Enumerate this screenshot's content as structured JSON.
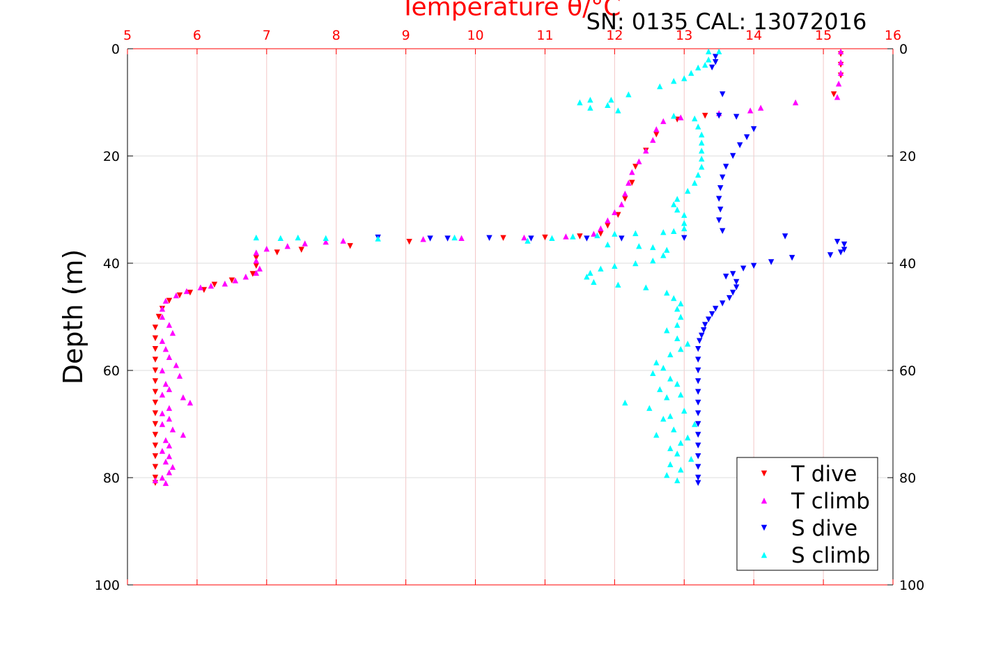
{
  "chart_data": {
    "type": "scatter",
    "title": "Temperature θ/°C",
    "subtitle": "SN: 0135  CAL: 13072016",
    "xlabel": "Temperature θ/°C",
    "ylabel": "Depth (m)",
    "xlim": [
      5,
      16
    ],
    "ylim": [
      0,
      100
    ],
    "y_reversed": true,
    "x_axis_position": "top",
    "x_ticks": [
      5,
      6,
      7,
      8,
      9,
      10,
      11,
      12,
      13,
      14,
      15,
      16
    ],
    "y_ticks": [
      0,
      20,
      40,
      60,
      80,
      100
    ],
    "grid": true,
    "legend_position": "bottom-right",
    "colors": {
      "axis_top": "#ff0000",
      "grid_x": "#f3c6c6",
      "grid_y": "#dcdcdc"
    },
    "series": [
      {
        "name": "T dive",
        "marker": "triangle-down",
        "color": "#ff0000",
        "points": [
          [
            15.25,
            1
          ],
          [
            15.25,
            3
          ],
          [
            15.25,
            5
          ],
          [
            15.15,
            8.5
          ],
          [
            13.3,
            12.5
          ],
          [
            12.9,
            13.2
          ],
          [
            12.6,
            16
          ],
          [
            12.45,
            19
          ],
          [
            12.3,
            22
          ],
          [
            12.25,
            25
          ],
          [
            12.15,
            28
          ],
          [
            12.05,
            31
          ],
          [
            11.9,
            33
          ],
          [
            11.8,
            34.5
          ],
          [
            11.5,
            35
          ],
          [
            11.0,
            35.2
          ],
          [
            10.4,
            35.3
          ],
          [
            9.05,
            36
          ],
          [
            8.2,
            36.8
          ],
          [
            7.5,
            37.5
          ],
          [
            7.15,
            38
          ],
          [
            6.85,
            39
          ],
          [
            6.85,
            40.5
          ],
          [
            6.8,
            42
          ],
          [
            6.5,
            43.2
          ],
          [
            6.25,
            44
          ],
          [
            6.1,
            45
          ],
          [
            5.9,
            45.5
          ],
          [
            5.75,
            46
          ],
          [
            5.6,
            47
          ],
          [
            5.5,
            48.5
          ],
          [
            5.45,
            50
          ],
          [
            5.4,
            52
          ],
          [
            5.4,
            54
          ],
          [
            5.4,
            56
          ],
          [
            5.4,
            58
          ],
          [
            5.4,
            60
          ],
          [
            5.4,
            62
          ],
          [
            5.4,
            64
          ],
          [
            5.4,
            66
          ],
          [
            5.4,
            68
          ],
          [
            5.4,
            70
          ],
          [
            5.4,
            72
          ],
          [
            5.4,
            74
          ],
          [
            5.4,
            76
          ],
          [
            5.4,
            78
          ],
          [
            5.4,
            80
          ],
          [
            5.4,
            81
          ]
        ]
      },
      {
        "name": "T climb",
        "marker": "triangle-up",
        "color": "#ff00ff",
        "points": [
          [
            15.25,
            0.5
          ],
          [
            15.25,
            2.5
          ],
          [
            15.25,
            4.5
          ],
          [
            15.22,
            6.5
          ],
          [
            15.2,
            9
          ],
          [
            14.6,
            10
          ],
          [
            14.1,
            11
          ],
          [
            13.95,
            11.5
          ],
          [
            13.5,
            12
          ],
          [
            12.95,
            12.8
          ],
          [
            12.7,
            13.5
          ],
          [
            12.6,
            15
          ],
          [
            12.55,
            17
          ],
          [
            12.45,
            19
          ],
          [
            12.35,
            21
          ],
          [
            12.25,
            23
          ],
          [
            12.2,
            25
          ],
          [
            12.15,
            27
          ],
          [
            12.1,
            29
          ],
          [
            12.0,
            30.5
          ],
          [
            11.9,
            32
          ],
          [
            11.8,
            33.5
          ],
          [
            11.7,
            34.5
          ],
          [
            11.3,
            35
          ],
          [
            10.7,
            35.2
          ],
          [
            9.8,
            35.3
          ],
          [
            9.25,
            35.5
          ],
          [
            8.1,
            35.8
          ],
          [
            7.85,
            36
          ],
          [
            7.55,
            36.3
          ],
          [
            7.3,
            36.8
          ],
          [
            7.0,
            37.3
          ],
          [
            6.85,
            38
          ],
          [
            6.85,
            39.5
          ],
          [
            6.9,
            41
          ],
          [
            6.85,
            41.8
          ],
          [
            6.7,
            42.5
          ],
          [
            6.55,
            43.2
          ],
          [
            6.4,
            43.8
          ],
          [
            6.2,
            44.2
          ],
          [
            6.05,
            44.5
          ],
          [
            5.85,
            45.2
          ],
          [
            5.7,
            46
          ],
          [
            5.55,
            47
          ],
          [
            5.5,
            48.5
          ],
          [
            5.5,
            50
          ],
          [
            5.6,
            51.5
          ],
          [
            5.65,
            53
          ],
          [
            5.5,
            54.5
          ],
          [
            5.55,
            56
          ],
          [
            5.6,
            57.5
          ],
          [
            5.7,
            59
          ],
          [
            5.5,
            60
          ],
          [
            5.75,
            61
          ],
          [
            5.55,
            62.5
          ],
          [
            5.6,
            63.5
          ],
          [
            5.5,
            64.5
          ],
          [
            5.8,
            65
          ],
          [
            5.9,
            66
          ],
          [
            5.6,
            67
          ],
          [
            5.5,
            68
          ],
          [
            5.6,
            69
          ],
          [
            5.5,
            70
          ],
          [
            5.65,
            71
          ],
          [
            5.8,
            72
          ],
          [
            5.55,
            73
          ],
          [
            5.6,
            74
          ],
          [
            5.5,
            75
          ],
          [
            5.6,
            76
          ],
          [
            5.55,
            77
          ],
          [
            5.65,
            78
          ],
          [
            5.6,
            79
          ],
          [
            5.5,
            80
          ],
          [
            5.4,
            80.5
          ],
          [
            5.55,
            81
          ]
        ]
      },
      {
        "name": "S dive",
        "marker": "triangle-down",
        "color": "#0000ff",
        "points": [
          [
            13.45,
            1.5
          ],
          [
            13.45,
            2.5
          ],
          [
            13.4,
            3.5
          ],
          [
            13.55,
            8.5
          ],
          [
            13.5,
            12.5
          ],
          [
            13.75,
            12.7
          ],
          [
            14.0,
            15
          ],
          [
            13.9,
            16.5
          ],
          [
            13.8,
            18
          ],
          [
            13.7,
            20
          ],
          [
            13.6,
            22
          ],
          [
            13.55,
            24
          ],
          [
            13.52,
            26
          ],
          [
            13.5,
            28
          ],
          [
            13.52,
            30
          ],
          [
            13.5,
            32
          ],
          [
            13.55,
            34
          ],
          [
            14.45,
            35
          ],
          [
            13.0,
            35.3
          ],
          [
            12.1,
            35.4
          ],
          [
            11.6,
            35.4
          ],
          [
            10.8,
            35.4
          ],
          [
            10.2,
            35.3
          ],
          [
            9.6,
            35.4
          ],
          [
            9.35,
            35.4
          ],
          [
            8.6,
            35.2
          ],
          [
            15.2,
            36
          ],
          [
            15.3,
            36.5
          ],
          [
            15.3,
            37.5
          ],
          [
            15.25,
            38
          ],
          [
            15.1,
            38.5
          ],
          [
            14.55,
            39
          ],
          [
            14.25,
            39.8
          ],
          [
            14.0,
            40.5
          ],
          [
            13.85,
            41
          ],
          [
            13.7,
            42
          ],
          [
            13.6,
            42.5
          ],
          [
            13.75,
            43.5
          ],
          [
            13.75,
            44.5
          ],
          [
            13.7,
            45.5
          ],
          [
            13.65,
            46.5
          ],
          [
            13.55,
            47.5
          ],
          [
            13.45,
            48.5
          ],
          [
            13.4,
            49.5
          ],
          [
            13.35,
            50.5
          ],
          [
            13.3,
            51.5
          ],
          [
            13.28,
            52.5
          ],
          [
            13.25,
            53.5
          ],
          [
            13.22,
            54.5
          ],
          [
            13.2,
            56
          ],
          [
            13.2,
            58
          ],
          [
            13.2,
            60
          ],
          [
            13.2,
            62
          ],
          [
            13.2,
            64
          ],
          [
            13.2,
            66
          ],
          [
            13.2,
            68
          ],
          [
            13.2,
            70
          ],
          [
            13.2,
            72
          ],
          [
            13.2,
            74
          ],
          [
            13.2,
            76
          ],
          [
            13.2,
            78
          ],
          [
            13.2,
            80
          ],
          [
            13.2,
            81
          ]
        ]
      },
      {
        "name": "S climb",
        "marker": "triangle-up",
        "color": "#00ffff",
        "points": [
          [
            13.35,
            0.5
          ],
          [
            13.5,
            0.5
          ],
          [
            13.35,
            2
          ],
          [
            13.3,
            3
          ],
          [
            13.2,
            3.5
          ],
          [
            13.1,
            4.5
          ],
          [
            13.0,
            5.5
          ],
          [
            12.85,
            6
          ],
          [
            12.65,
            7
          ],
          [
            12.2,
            8.5
          ],
          [
            11.95,
            9.5
          ],
          [
            11.65,
            9.5
          ],
          [
            11.5,
            10
          ],
          [
            11.65,
            11
          ],
          [
            11.9,
            10.5
          ],
          [
            12.05,
            11.5
          ],
          [
            12.85,
            12.5
          ],
          [
            13.15,
            13
          ],
          [
            13.2,
            14.5
          ],
          [
            13.25,
            16
          ],
          [
            13.25,
            17.5
          ],
          [
            13.25,
            19
          ],
          [
            13.25,
            20.5
          ],
          [
            13.25,
            22
          ],
          [
            13.2,
            23.5
          ],
          [
            13.15,
            25
          ],
          [
            13.05,
            26.5
          ],
          [
            12.9,
            28
          ],
          [
            12.85,
            29
          ],
          [
            12.9,
            30
          ],
          [
            13.0,
            31
          ],
          [
            13.0,
            32.5
          ],
          [
            13.0,
            33.5
          ],
          [
            12.85,
            34
          ],
          [
            12.7,
            34.2
          ],
          [
            12.3,
            34.4
          ],
          [
            12.0,
            34.5
          ],
          [
            11.75,
            34.8
          ],
          [
            11.4,
            35
          ],
          [
            11.1,
            35.3
          ],
          [
            10.75,
            35.8
          ],
          [
            9.7,
            35.2
          ],
          [
            8.6,
            35.4
          ],
          [
            7.85,
            35.3
          ],
          [
            7.45,
            35.2
          ],
          [
            7.2,
            35.3
          ],
          [
            6.85,
            35.2
          ],
          [
            11.9,
            36.5
          ],
          [
            12.35,
            36.8
          ],
          [
            12.55,
            37
          ],
          [
            12.75,
            37.5
          ],
          [
            12.7,
            38.5
          ],
          [
            12.55,
            39.5
          ],
          [
            12.3,
            40
          ],
          [
            12.0,
            40.5
          ],
          [
            11.8,
            41
          ],
          [
            11.65,
            41.8
          ],
          [
            11.6,
            42.5
          ],
          [
            11.7,
            43.5
          ],
          [
            12.05,
            44
          ],
          [
            12.45,
            44.5
          ],
          [
            12.75,
            45.5
          ],
          [
            12.85,
            46.5
          ],
          [
            12.95,
            47.5
          ],
          [
            12.9,
            48.5
          ],
          [
            12.95,
            50
          ],
          [
            12.9,
            51.5
          ],
          [
            12.75,
            52.5
          ],
          [
            12.9,
            54
          ],
          [
            13.05,
            55
          ],
          [
            12.95,
            56
          ],
          [
            12.8,
            57
          ],
          [
            12.6,
            58.5
          ],
          [
            12.7,
            59.5
          ],
          [
            12.55,
            60.5
          ],
          [
            12.8,
            61.5
          ],
          [
            12.9,
            62.5
          ],
          [
            12.65,
            63.5
          ],
          [
            12.95,
            64.5
          ],
          [
            12.75,
            65
          ],
          [
            12.15,
            66
          ],
          [
            12.5,
            67
          ],
          [
            13.0,
            67.5
          ],
          [
            12.8,
            68.5
          ],
          [
            12.7,
            69
          ],
          [
            13.15,
            70
          ],
          [
            12.85,
            71
          ],
          [
            12.6,
            72
          ],
          [
            13.05,
            72.5
          ],
          [
            12.95,
            73.5
          ],
          [
            12.8,
            74.5
          ],
          [
            12.9,
            75.5
          ],
          [
            13.1,
            76.5
          ],
          [
            12.8,
            77.5
          ],
          [
            12.95,
            78.5
          ],
          [
            12.75,
            79.5
          ],
          [
            12.9,
            80.5
          ]
        ]
      }
    ]
  }
}
